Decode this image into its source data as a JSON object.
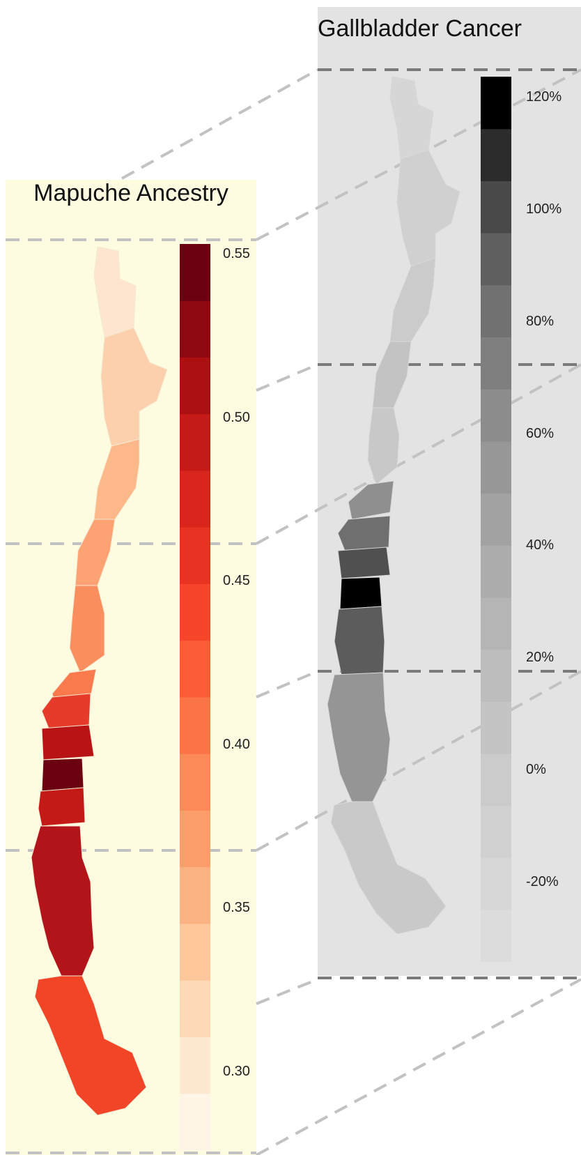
{
  "panels": {
    "mapuche": {
      "title": "Mapuche Ancestry",
      "background": "#fdfbe0",
      "legend_ticks": [
        {
          "label": "0.55",
          "value": 0.55
        },
        {
          "label": "0.50",
          "value": 0.5
        },
        {
          "label": "0.45",
          "value": 0.45
        },
        {
          "label": "0.40",
          "value": 0.4
        },
        {
          "label": "0.35",
          "value": 0.35
        },
        {
          "label": "0.30",
          "value": 0.3
        }
      ],
      "legend_colors": [
        "#fff5e6",
        "#fee8d0",
        "#fdd9b5",
        "#fdc79b",
        "#fcb383",
        "#fc9e6c",
        "#fb8a58",
        "#fb7446",
        "#fb5e36",
        "#f6452a",
        "#e93322",
        "#d9251c",
        "#c51a17",
        "#ad1013",
        "#8e0811",
        "#6a0010"
      ]
    },
    "gallbladder": {
      "title": "Gallbladder Cancer",
      "background": "#e3e3e3",
      "legend_ticks": [
        {
          "label": "120%",
          "value": 120
        },
        {
          "label": "100%",
          "value": 100
        },
        {
          "label": "80%",
          "value": 80
        },
        {
          "label": "60%",
          "value": 60
        },
        {
          "label": "40%",
          "value": 40
        },
        {
          "label": "20%",
          "value": 20
        },
        {
          "label": "0%",
          "value": 0
        },
        {
          "label": "-20%",
          "value": -20
        }
      ],
      "legend_colors": [
        "#dcdcdc",
        "#d7d7d7",
        "#d1d1d1",
        "#cbcbcb",
        "#c4c4c4",
        "#bdbdbd",
        "#b5b5b5",
        "#acacac",
        "#a2a2a2",
        "#979797",
        "#8c8c8c",
        "#7f7f7f",
        "#717171",
        "#5f5f5f",
        "#494949",
        "#2c2c2c",
        "#000000"
      ]
    }
  }
}
